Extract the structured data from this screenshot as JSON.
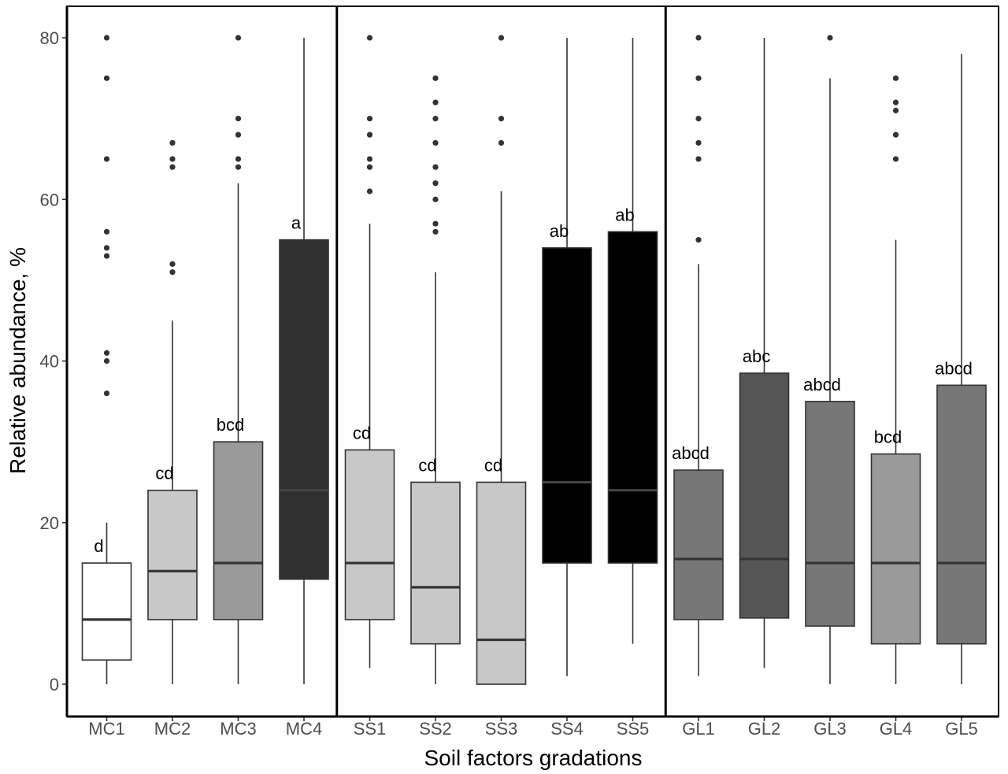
{
  "chart_data": {
    "type": "boxplot",
    "title": "",
    "xlabel": "Soil factors gradations",
    "ylabel": "Relative abundance, %",
    "ylim": [
      -4,
      84
    ],
    "yticks": [
      0,
      20,
      40,
      60,
      80
    ],
    "grid": false,
    "panels": [
      {
        "name": "MC",
        "categories": [
          "MC1",
          "MC2",
          "MC3",
          "MC4"
        ]
      },
      {
        "name": "SS",
        "categories": [
          "SS1",
          "SS2",
          "SS3",
          "SS4",
          "SS5"
        ]
      },
      {
        "name": "GL",
        "categories": [
          "GL1",
          "GL2",
          "GL3",
          "GL4",
          "GL5"
        ]
      }
    ],
    "boxes": [
      {
        "category": "MC1",
        "fill": "#ffffff",
        "whisker_low": 0,
        "q1": 3,
        "median": 8,
        "q3": 15,
        "whisker_high": 20,
        "outliers": [
          36,
          40,
          41,
          53,
          54,
          56,
          65,
          75,
          80
        ],
        "label": "d"
      },
      {
        "category": "MC2",
        "fill": "#c8c8c8",
        "whisker_low": 0,
        "q1": 8,
        "median": 14,
        "q3": 24,
        "whisker_high": 45,
        "outliers": [
          51,
          52,
          64,
          65,
          67
        ],
        "label": "cd"
      },
      {
        "category": "MC3",
        "fill": "#9a9a9a",
        "whisker_low": 0,
        "q1": 8,
        "median": 15,
        "q3": 30,
        "whisker_high": 62,
        "outliers": [
          64,
          65,
          68,
          70,
          80
        ],
        "label": "bcd"
      },
      {
        "category": "MC4",
        "fill": "#303030",
        "whisker_low": 0,
        "q1": 13,
        "median": 24,
        "q3": 55,
        "whisker_high": 80,
        "outliers": [],
        "label": "a"
      },
      {
        "category": "SS1",
        "fill": "#c8c8c8",
        "whisker_low": 2,
        "q1": 8,
        "median": 15,
        "q3": 29,
        "whisker_high": 57,
        "outliers": [
          61,
          64,
          65,
          68,
          70,
          80
        ],
        "label": "cd"
      },
      {
        "category": "SS2",
        "fill": "#c8c8c8",
        "whisker_low": 0,
        "q1": 5,
        "median": 12,
        "q3": 25,
        "whisker_high": 51,
        "outliers": [
          56,
          57,
          60,
          62,
          64,
          67,
          70,
          72,
          75
        ],
        "label": "cd"
      },
      {
        "category": "SS3",
        "fill": "#c8c8c8",
        "whisker_low": 0,
        "q1": 0,
        "median": 5.5,
        "q3": 25,
        "whisker_high": 61,
        "outliers": [
          67,
          70,
          80
        ],
        "label": "cd"
      },
      {
        "category": "SS4",
        "fill": "#000000",
        "whisker_low": 1,
        "q1": 15,
        "median": 25,
        "q3": 54,
        "whisker_high": 80,
        "outliers": [],
        "label": "ab"
      },
      {
        "category": "SS5",
        "fill": "#000000",
        "whisker_low": 5,
        "q1": 15,
        "median": 24,
        "q3": 56,
        "whisker_high": 80,
        "outliers": [],
        "label": "ab"
      },
      {
        "category": "GL1",
        "fill": "#777777",
        "whisker_low": 1,
        "q1": 8,
        "median": 15.5,
        "q3": 26.5,
        "whisker_high": 52,
        "outliers": [
          55,
          65,
          67,
          70,
          75,
          80
        ],
        "label": "abcd"
      },
      {
        "category": "GL2",
        "fill": "#555555",
        "whisker_low": 2,
        "q1": 8.2,
        "median": 15.5,
        "q3": 38.5,
        "whisker_high": 80,
        "outliers": [],
        "label": "abc"
      },
      {
        "category": "GL3",
        "fill": "#777777",
        "whisker_low": 0,
        "q1": 7.2,
        "median": 15,
        "q3": 35,
        "whisker_high": 75,
        "outliers": [
          80
        ],
        "label": "abcd"
      },
      {
        "category": "GL4",
        "fill": "#9a9a9a",
        "whisker_low": 0,
        "q1": 5,
        "median": 15,
        "q3": 28.5,
        "whisker_high": 55,
        "outliers": [
          65,
          68,
          71,
          72,
          75
        ],
        "label": "bcd"
      },
      {
        "category": "GL5",
        "fill": "#777777",
        "whisker_low": 0,
        "q1": 5,
        "median": 15,
        "q3": 37,
        "whisker_high": 78,
        "outliers": [],
        "label": "abcd"
      }
    ]
  }
}
